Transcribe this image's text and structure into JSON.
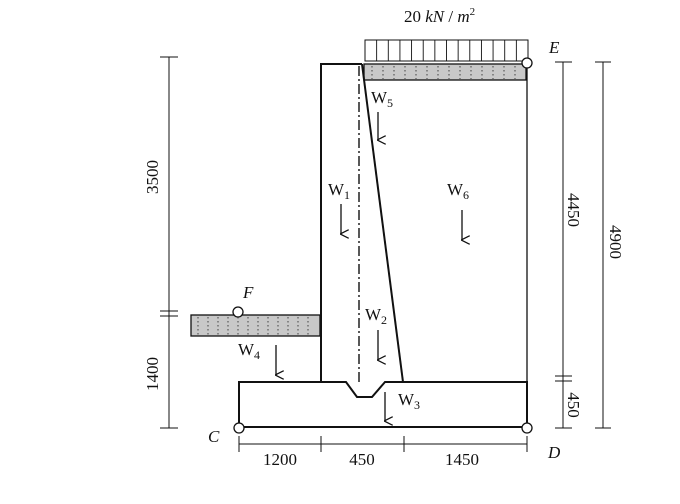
{
  "load": {
    "value": "20",
    "unit_kn": "kN",
    "unit_sep": " / ",
    "unit_m": "m",
    "unit_exp": "2"
  },
  "points": {
    "E": "E",
    "F": "F",
    "C": "C",
    "D": "D"
  },
  "weights": [
    {
      "letter": "W",
      "index": "1"
    },
    {
      "letter": "W",
      "index": "2"
    },
    {
      "letter": "W",
      "index": "3"
    },
    {
      "letter": "W",
      "index": "4"
    },
    {
      "letter": "W",
      "index": "5"
    },
    {
      "letter": "W",
      "index": "6"
    }
  ],
  "dimensions": {
    "left_upper": "3500",
    "left_lower": "1400",
    "right_inner": "4450",
    "right_base": "450",
    "right_outer": "4900",
    "base_left": "1200",
    "base_mid": "450",
    "base_right": "1450"
  },
  "colors": {
    "line": "#111111",
    "soil_fill": "#c8c8c8"
  }
}
